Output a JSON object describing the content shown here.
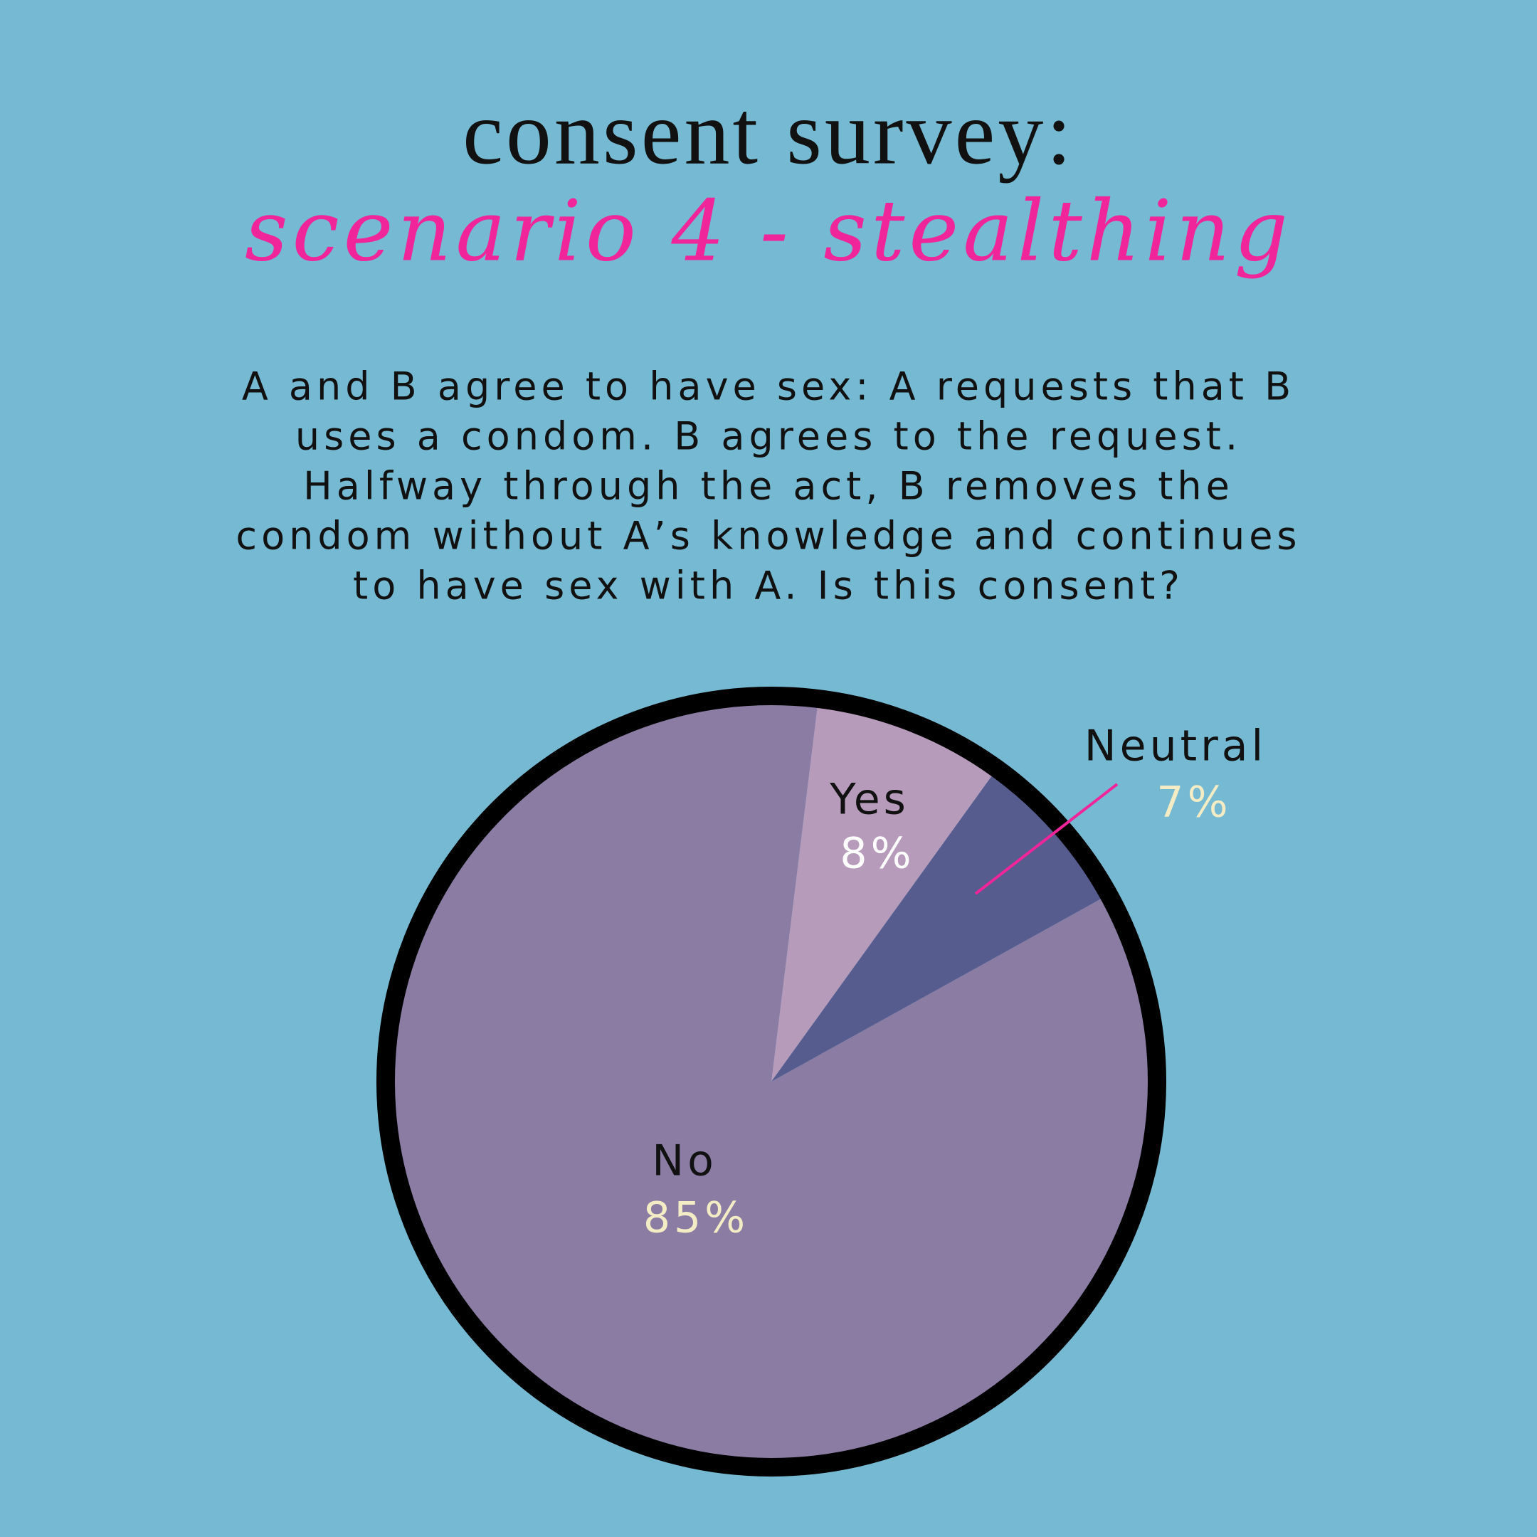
{
  "chart_data": {
    "type": "pie",
    "title": "consent survey:",
    "subtitle": "scenario 4 - stealthing",
    "description": [
      "A and B agree to have sex: A requests that B",
      "uses a condom. B agrees to the request.",
      "Halfway through the act, B removes the",
      "condom without A’s knowledge and continues",
      "to have sex with A. Is this consent?"
    ],
    "categories": [
      "Yes",
      "Neutral",
      "No"
    ],
    "values": [
      8,
      7,
      85
    ],
    "value_labels": [
      "8%",
      "7%",
      "85%"
    ],
    "colors": [
      "#b79bbb",
      "#575c8e",
      "#8b7ca4"
    ]
  }
}
